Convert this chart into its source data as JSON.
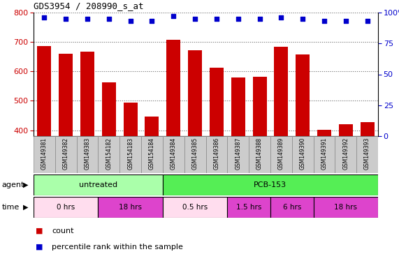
{
  "title": "GDS3954 / 208990_s_at",
  "samples": [
    "GSM149381",
    "GSM149382",
    "GSM149383",
    "GSM154182",
    "GSM154183",
    "GSM154184",
    "GSM149384",
    "GSM149385",
    "GSM149386",
    "GSM149387",
    "GSM149388",
    "GSM149389",
    "GSM149390",
    "GSM149391",
    "GSM149392",
    "GSM149393"
  ],
  "counts": [
    685,
    660,
    668,
    562,
    493,
    447,
    707,
    672,
    612,
    580,
    582,
    683,
    657,
    401,
    420,
    427
  ],
  "percentile_ranks": [
    96,
    95,
    95,
    95,
    93,
    93,
    97,
    95,
    95,
    95,
    95,
    96,
    95,
    93,
    93,
    93
  ],
  "ylim_left": [
    380,
    800
  ],
  "ylim_right": [
    0,
    100
  ],
  "yticks_left": [
    400,
    500,
    600,
    700,
    800
  ],
  "yticks_right": [
    0,
    25,
    50,
    75,
    100
  ],
  "bar_color": "#cc0000",
  "dot_color": "#0000cc",
  "agent_groups": [
    {
      "label": "untreated",
      "start": 0,
      "end": 6,
      "color": "#aaffaa"
    },
    {
      "label": "PCB-153",
      "start": 6,
      "end": 16,
      "color": "#55ee55"
    }
  ],
  "time_groups": [
    {
      "label": "0 hrs",
      "start": 0,
      "end": 3,
      "color": "#ffddee"
    },
    {
      "label": "18 hrs",
      "start": 3,
      "end": 6,
      "color": "#dd44cc"
    },
    {
      "label": "0.5 hrs",
      "start": 6,
      "end": 9,
      "color": "#ffddee"
    },
    {
      "label": "1.5 hrs",
      "start": 9,
      "end": 11,
      "color": "#dd44cc"
    },
    {
      "label": "6 hrs",
      "start": 11,
      "end": 13,
      "color": "#dd44cc"
    },
    {
      "label": "18 hrs",
      "start": 13,
      "end": 16,
      "color": "#dd44cc"
    }
  ],
  "bar_width": 0.65,
  "grid_linestyle": "dotted",
  "fig_bg": "#ffffff",
  "sample_box_color": "#cccccc",
  "sample_box_edge": "#888888"
}
